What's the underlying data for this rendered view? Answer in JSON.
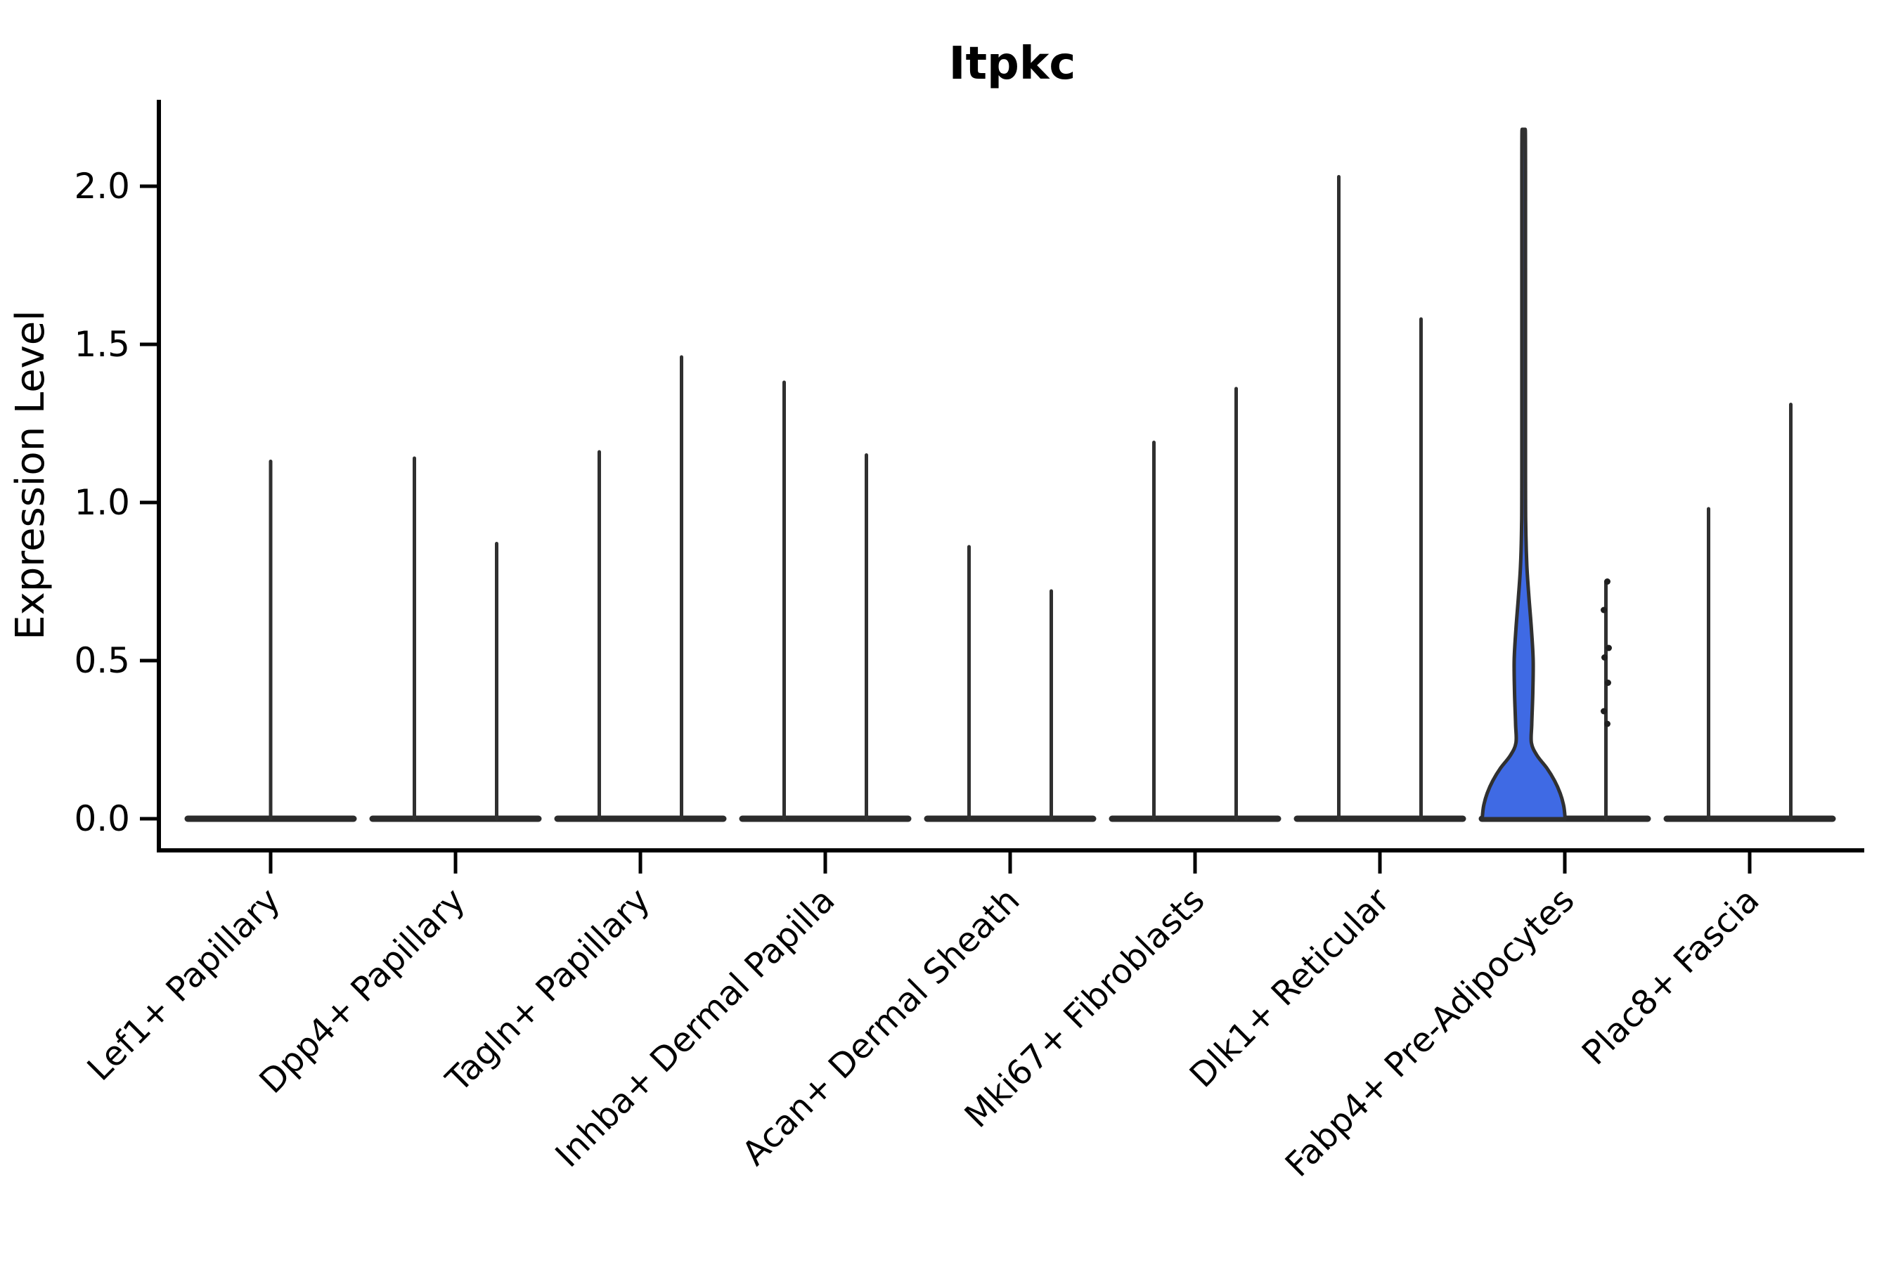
{
  "header": {
    "title": "Itpkc"
  },
  "chart_data": {
    "type": "violin",
    "title": "Itpkc",
    "xlabel": "",
    "ylabel": "Expression Level",
    "ylim": [
      -0.1,
      2.28
    ],
    "grid": false,
    "legend_position": "none",
    "yticks": [
      0.0,
      0.5,
      1.0,
      1.5,
      2.0
    ],
    "ytick_labels": [
      "0.0",
      "0.5",
      "1.0",
      "1.5",
      "2.0"
    ],
    "categories": [
      "Lef1+ Papillary",
      "Dpp4+ Papillary",
      "Tagln+ Papillary",
      "Inhba+ Dermal Papilla",
      "Acan+ Dermal Sheath",
      "Mki67+ Fibroblasts",
      "Dlk1+ Reticular",
      "Fabp4+ Pre-Adipocytes",
      "Plac8+ Fascia"
    ],
    "series": [
      {
        "category": "Lef1+ Papillary",
        "violins": [
          {
            "slot": "full",
            "max": 1.13
          }
        ]
      },
      {
        "category": "Dpp4+ Papillary",
        "violins": [
          {
            "slot": "left",
            "max": 1.14
          },
          {
            "slot": "right",
            "max": 0.87
          }
        ]
      },
      {
        "category": "Tagln+ Papillary",
        "violins": [
          {
            "slot": "left",
            "max": 1.16
          },
          {
            "slot": "right",
            "max": 1.46
          }
        ]
      },
      {
        "category": "Inhba+ Dermal Papilla",
        "violins": [
          {
            "slot": "left",
            "max": 1.38
          },
          {
            "slot": "right",
            "max": 1.15
          }
        ]
      },
      {
        "category": "Acan+ Dermal Sheath",
        "violins": [
          {
            "slot": "left",
            "max": 0.86
          },
          {
            "slot": "right",
            "max": 0.72
          }
        ]
      },
      {
        "category": "Mki67+ Fibroblasts",
        "violins": [
          {
            "slot": "left",
            "max": 1.19
          },
          {
            "slot": "right",
            "max": 1.36
          }
        ]
      },
      {
        "category": "Dlk1+ Reticular",
        "violins": [
          {
            "slot": "left",
            "max": 2.03
          },
          {
            "slot": "right",
            "max": 1.58
          }
        ]
      },
      {
        "category": "Fabp4+ Pre-Adipocytes",
        "violins": [
          {
            "slot": "left",
            "max": 2.18,
            "filled": true,
            "profile": [
              [
                0.0,
                59
              ],
              [
                0.04,
                57
              ],
              [
                0.08,
                52
              ],
              [
                0.12,
                44
              ],
              [
                0.16,
                33
              ],
              [
                0.2,
                19
              ],
              [
                0.24,
                11
              ],
              [
                0.3,
                11.5
              ],
              [
                0.4,
                13
              ],
              [
                0.5,
                13.5
              ],
              [
                0.6,
                11
              ],
              [
                0.7,
                7.5
              ],
              [
                0.8,
                4.5
              ],
              [
                0.92,
                3
              ],
              [
                1.1,
                2.6
              ],
              [
                2.05,
                2.6
              ],
              [
                2.18,
                2.2
              ]
            ]
          },
          {
            "slot": "right",
            "max": 0.75,
            "points": [
              0.75,
              0.66,
              0.54,
              0.51,
              0.43,
              0.34,
              0.3
            ]
          }
        ]
      },
      {
        "category": "Plac8+ Fascia",
        "violins": [
          {
            "slot": "left",
            "max": 0.98
          },
          {
            "slot": "right",
            "max": 1.31
          }
        ]
      }
    ],
    "colors": {
      "highlight_fill": "#3f6ae4",
      "violin_line": "#303030",
      "base_line": "#2b2b2b",
      "spine": "#000000",
      "point": "#1f1f1f",
      "text": "#000000",
      "background": "#ffffff"
    }
  }
}
